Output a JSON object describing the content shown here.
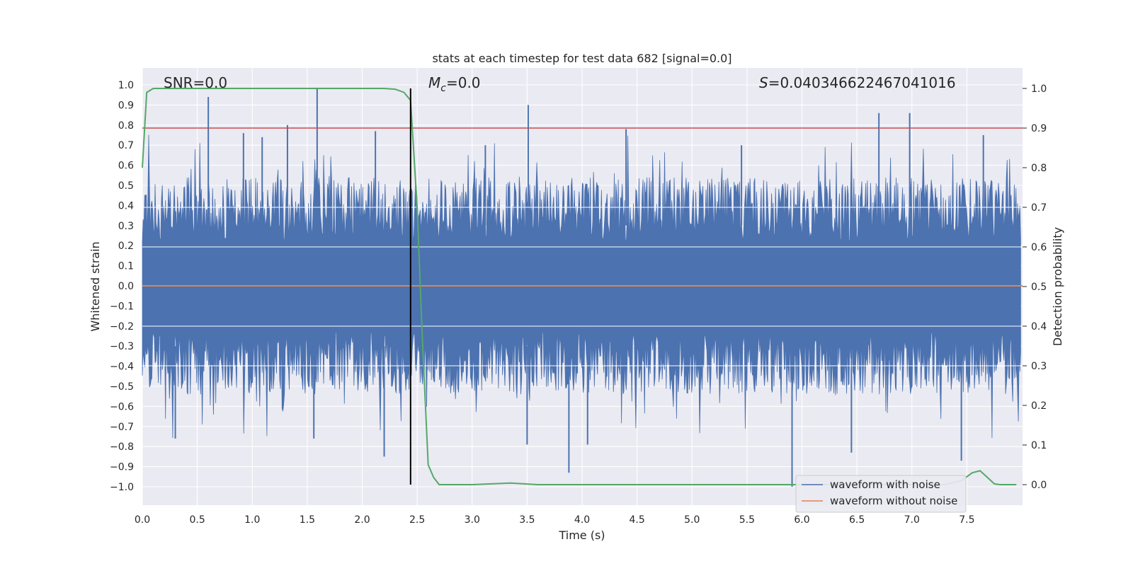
{
  "chart_data": {
    "type": "line",
    "title": "stats at each timestep for test data 682 [signal=0.0]",
    "xlabel": "Time (s)",
    "ylabel": "Whitened strain",
    "ylabel_right": "Detection probability",
    "xlim": [
      0.0,
      8.0
    ],
    "ylim": [
      -1.1,
      1.1
    ],
    "ylim_right": [
      -0.05,
      1.05
    ],
    "x_ticks": [
      "0.0",
      "0.5",
      "1.0",
      "1.5",
      "2.0",
      "2.5",
      "3.0",
      "3.5",
      "4.0",
      "4.5",
      "5.0",
      "5.5",
      "6.0",
      "6.5",
      "7.0",
      "7.5"
    ],
    "y_ticks": [
      "1.0",
      "0.9",
      "0.8",
      "0.7",
      "0.6",
      "0.5",
      "0.4",
      "0.3",
      "0.2",
      "0.1",
      "0.0",
      "−0.1",
      "−0.2",
      "−0.3",
      "−0.4",
      "−0.5",
      "−0.6",
      "−0.7",
      "−0.8",
      "−0.9",
      "−1.0"
    ],
    "y_ticks_right": [
      "1.0",
      "0.9",
      "0.8",
      "0.7",
      "0.6",
      "0.5",
      "0.4",
      "0.3",
      "0.2",
      "0.1",
      "0.0"
    ],
    "annotations": {
      "snr": "SNR=0.0",
      "mc_symbol": "M",
      "mc_sub": "c",
      "mc_value": "=0.0",
      "s_symbol": "S",
      "s_value": "=0.0403466224670410​16"
    },
    "threshold_right": 0.9,
    "marker_time": 2.44,
    "noise_envelope": {
      "typical_max": 0.4,
      "typical_min": -0.4,
      "spikes_up": [
        [
          0.6,
          0.94
        ],
        [
          1.59,
          0.98
        ],
        [
          3.51,
          0.9
        ],
        [
          4.4,
          0.78
        ],
        [
          6.7,
          0.86
        ],
        [
          6.98,
          0.86
        ],
        [
          1.32,
          0.8
        ],
        [
          0.92,
          0.76
        ],
        [
          1.09,
          0.74
        ],
        [
          2.12,
          0.77
        ],
        [
          3.12,
          0.7
        ],
        [
          5.45,
          0.7
        ],
        [
          7.65,
          0.75
        ]
      ],
      "spikes_down": [
        [
          0.3,
          -0.76
        ],
        [
          1.56,
          -0.76
        ],
        [
          2.2,
          -0.85
        ],
        [
          3.88,
          -0.93
        ],
        [
          5.91,
          -1.0
        ],
        [
          6.45,
          -0.83
        ],
        [
          7.45,
          -0.87
        ],
        [
          3.5,
          -0.79
        ],
        [
          4.05,
          -0.79
        ]
      ]
    },
    "series": [
      {
        "name": "waveform with noise",
        "color": "#4c72b0"
      },
      {
        "name": "waveform without noise",
        "color": "#dd8452",
        "value": 0.0
      },
      {
        "name": "detection probability",
        "color": "#55a868",
        "x": [
          0.0,
          0.04,
          0.1,
          0.2,
          0.5,
          1.0,
          1.5,
          2.0,
          2.2,
          2.3,
          2.38,
          2.44,
          2.5,
          2.55,
          2.6,
          2.65,
          2.7,
          3.0,
          3.35,
          3.6,
          4.0,
          5.0,
          6.0,
          6.8,
          7.3,
          7.45,
          7.55,
          7.62,
          7.68,
          7.75,
          7.8,
          7.86,
          7.95
        ],
        "y": [
          0.8,
          0.99,
          1.0,
          1.0,
          1.0,
          1.0,
          1.0,
          1.0,
          1.0,
          0.998,
          0.99,
          0.97,
          0.7,
          0.35,
          0.05,
          0.018,
          0.0,
          0.0,
          0.004,
          0.0,
          0.0,
          0.0,
          0.0,
          0.0,
          0.0,
          0.01,
          0.03,
          0.035,
          0.02,
          0.002,
          0.0,
          0.0,
          0.0
        ]
      },
      {
        "name": "threshold",
        "color": "#c44e52",
        "value": 0.9
      }
    ],
    "legend": {
      "position": "bottom-right",
      "entries": [
        {
          "label": "waveform with noise",
          "color": "#4c72b0"
        },
        {
          "label": "waveform without noise",
          "color": "#dd8452"
        }
      ]
    }
  }
}
